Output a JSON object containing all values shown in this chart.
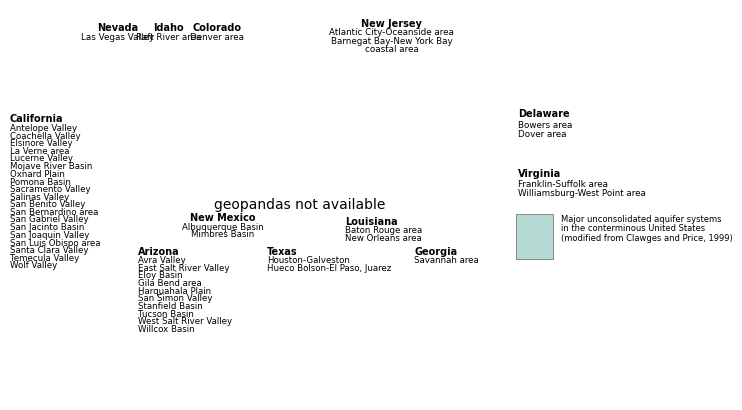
{
  "background_color": "#ffffff",
  "state_edgecolor": "#aaaaaa",
  "state_linewidth": 0.4,
  "country_edgecolor": "#333333",
  "country_linewidth": 0.9,
  "aquifer_facecolor": "#b5d9d3",
  "legend_box_color": "#b5d9d3",
  "legend_box_edge": "#888888",
  "legend_lines": [
    "Major unconsolidated aquifer systems",
    "in the conterminous United States",
    "(modified from Clawges and Price, 1999)"
  ]
}
